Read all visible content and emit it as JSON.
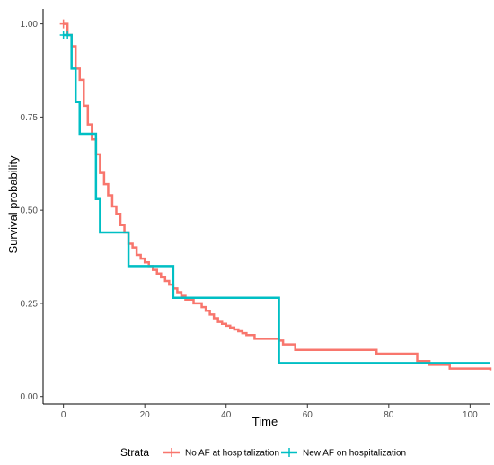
{
  "chart_data": {
    "type": "line",
    "step": true,
    "xlabel": "Time",
    "ylabel": "Survival probability",
    "xlim": [
      -5,
      105
    ],
    "ylim": [
      -0.02,
      1.04
    ],
    "x_ticks": [
      0,
      20,
      40,
      60,
      80,
      100
    ],
    "y_ticks": [
      0.0,
      0.25,
      0.5,
      0.75,
      1.0
    ],
    "x_tick_labels": [
      "0",
      "20",
      "40",
      "60",
      "80",
      "100"
    ],
    "y_tick_labels": [
      "0.00",
      "0.25",
      "0.50",
      "0.75",
      "1.00"
    ],
    "grid": false,
    "legend_position": "bottom",
    "legend_title": "Strata",
    "series": [
      {
        "name": "No AF at hospitalization",
        "color": "#F8766D",
        "x": [
          0,
          1,
          2,
          3,
          4,
          5,
          6,
          7,
          8,
          9,
          10,
          11,
          12,
          13,
          14,
          15,
          16,
          17,
          18,
          19,
          20,
          21,
          22,
          23,
          24,
          25,
          26,
          27,
          28,
          29,
          30,
          32,
          34,
          35,
          36,
          37,
          38,
          39,
          40,
          41,
          42,
          43,
          44,
          45,
          47,
          52,
          53,
          54,
          57,
          77,
          87,
          90,
          95,
          105
        ],
        "y": [
          1.0,
          0.97,
          0.94,
          0.88,
          0.85,
          0.78,
          0.73,
          0.69,
          0.65,
          0.6,
          0.57,
          0.54,
          0.51,
          0.49,
          0.46,
          0.44,
          0.41,
          0.4,
          0.38,
          0.37,
          0.36,
          0.35,
          0.34,
          0.33,
          0.32,
          0.31,
          0.3,
          0.29,
          0.28,
          0.27,
          0.26,
          0.25,
          0.24,
          0.23,
          0.22,
          0.21,
          0.2,
          0.195,
          0.19,
          0.185,
          0.18,
          0.175,
          0.17,
          0.165,
          0.155,
          0.155,
          0.15,
          0.14,
          0.125,
          0.115,
          0.095,
          0.085,
          0.075,
          0.07
        ]
      },
      {
        "name": "New AF on hospitalization",
        "color": "#00BFC4",
        "x": [
          0,
          1,
          2,
          3,
          4,
          7,
          8,
          9,
          16,
          27,
          53,
          105
        ],
        "y": [
          0.97,
          0.97,
          0.88,
          0.79,
          0.705,
          0.705,
          0.53,
          0.44,
          0.35,
          0.265,
          0.09,
          0.09
        ]
      }
    ],
    "censor_marks": [
      {
        "series": 0,
        "x": 0,
        "y": 1.0
      },
      {
        "series": 1,
        "x": 0,
        "y": 0.97
      },
      {
        "series": 1,
        "x": 1,
        "y": 0.97
      }
    ]
  }
}
